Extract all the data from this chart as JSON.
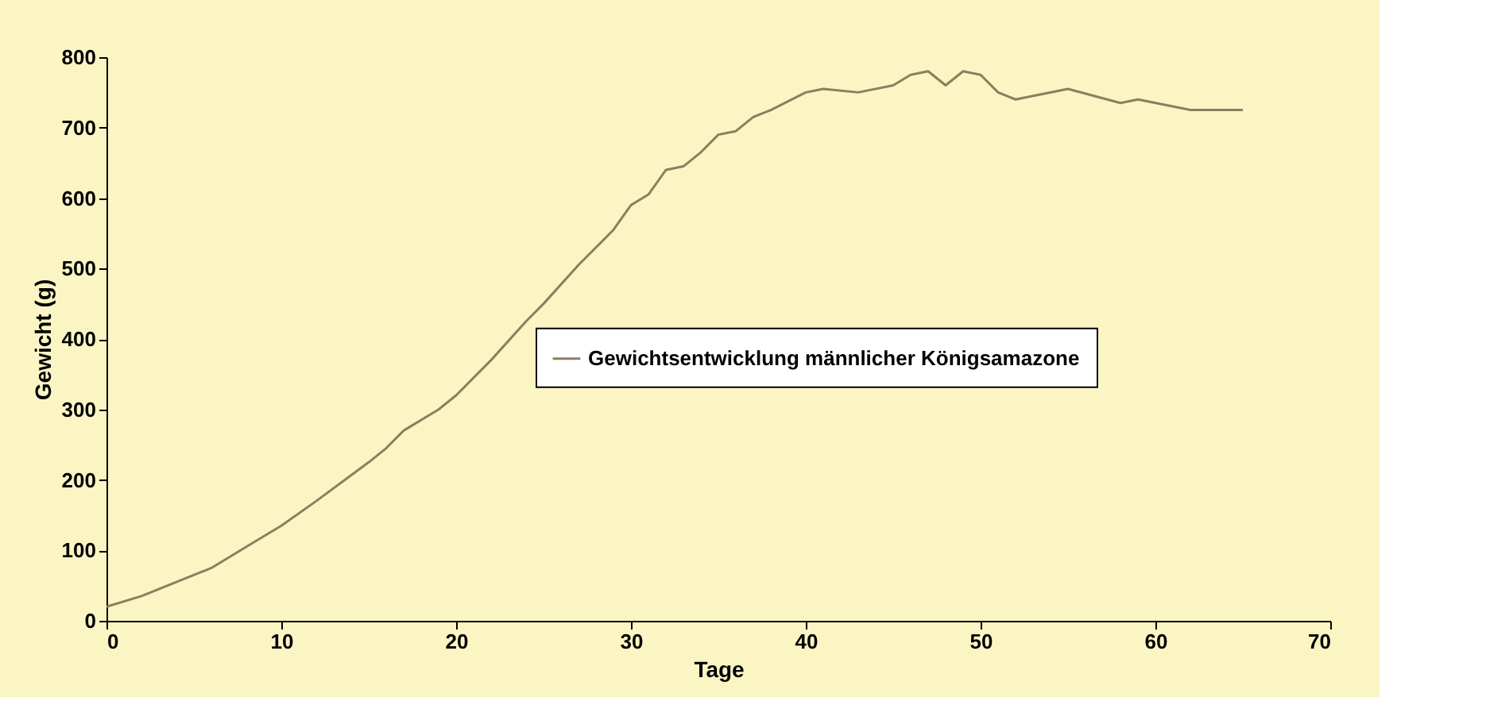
{
  "chart_data": {
    "type": "line",
    "xlabel": "Tage",
    "ylabel": "Gewicht (g)",
    "x": [
      0,
      2,
      4,
      6,
      8,
      10,
      12,
      15,
      16,
      17,
      19,
      20,
      22,
      24,
      25,
      27,
      29,
      30,
      31,
      32,
      33,
      34,
      35,
      36,
      37,
      38,
      40,
      41,
      43,
      45,
      46,
      47,
      48,
      49,
      50,
      51,
      52,
      55,
      58,
      59,
      62,
      65
    ],
    "series": [
      {
        "name": "Gewichtsentwicklung männlicher Königsamazone",
        "color": "#8a7f5e",
        "values": [
          20,
          35,
          55,
          75,
          105,
          135,
          170,
          225,
          245,
          270,
          300,
          320,
          370,
          425,
          450,
          505,
          555,
          590,
          605,
          640,
          645,
          665,
          690,
          695,
          715,
          725,
          750,
          755,
          750,
          760,
          775,
          780,
          760,
          780,
          775,
          750,
          740,
          755,
          735,
          740,
          725,
          725
        ]
      }
    ],
    "xlim": [
      0,
      70
    ],
    "xticks": [
      0,
      10,
      20,
      30,
      40,
      50,
      60,
      70
    ],
    "ylim": [
      0,
      800
    ],
    "yticks": [
      0,
      100,
      200,
      300,
      400,
      500,
      600,
      700,
      800
    ],
    "grid": false,
    "legend": "right",
    "marker": "none",
    "line_style": "solid"
  }
}
